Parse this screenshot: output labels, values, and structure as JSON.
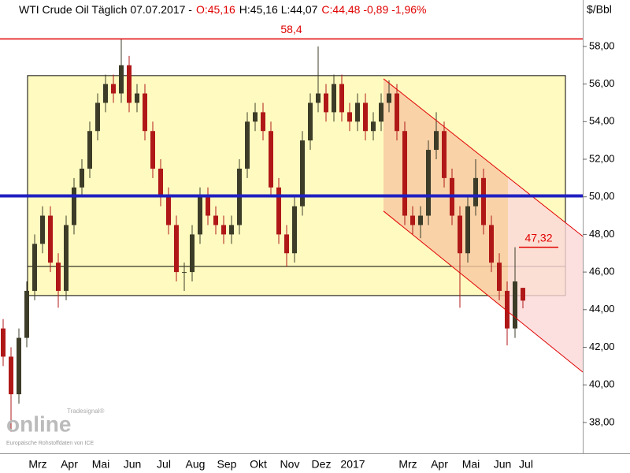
{
  "chart_data": {
    "type": "candlestick",
    "title_parts": [
      {
        "text": "WTI Crude Oil Täglich  07.07.2017 -",
        "color": "#000000"
      },
      {
        "text": "O:45,16",
        "color": "#e00000"
      },
      {
        "text": "H:45,16 L:44,07",
        "color": "#000000"
      },
      {
        "text": "C:44,48 -0,89 -1,96%",
        "color": "#e00000"
      }
    ],
    "unit_label": "$/Bbl",
    "watermark": "online",
    "watermark_small": "Tradesignal®",
    "source": "Europäische Rohstoffdaten von ICE",
    "categories": [
      null,
      null,
      null,
      null,
      "Mrz",
      null,
      null,
      null,
      "Apr",
      null,
      null,
      null,
      "Mai",
      null,
      null,
      null,
      "Jun",
      null,
      null,
      null,
      "Jul",
      null,
      null,
      null,
      "Aug",
      null,
      null,
      null,
      "Sep",
      null,
      null,
      null,
      "Okt",
      null,
      null,
      null,
      "Nov",
      null,
      null,
      null,
      "Dez",
      null,
      null,
      null,
      "2017",
      null,
      null,
      null,
      null,
      null,
      null,
      "Mrz",
      null,
      null,
      null,
      "Apr",
      null,
      null,
      null,
      "Mai",
      null,
      null,
      null,
      "Jun",
      null,
      null,
      "Jul"
    ],
    "open": [
      43.0,
      41.5,
      39.5,
      42.5,
      45.0,
      47.5,
      49.0,
      46.5,
      45.0,
      48.5,
      50.5,
      51.5,
      53.5,
      55.0,
      56.0,
      55.5,
      57.0,
      55.0,
      55.5,
      53.5,
      51.5,
      50.0,
      48.5,
      46.0,
      46.0,
      48.0,
      50.0,
      49.0,
      48.5,
      48.0,
      48.5,
      51.5,
      54.0,
      54.5,
      53.5,
      50.5,
      48.0,
      47.0,
      49.5,
      53.0,
      55.0,
      55.5,
      54.5,
      56.0,
      54.5,
      54.0,
      55.0,
      53.5,
      54.0,
      55.0,
      55.5,
      53.5,
      49.0,
      48.5,
      49.0,
      52.5,
      53.5,
      51.0,
      49.0,
      47.0,
      49.5,
      51.0,
      48.5,
      46.5,
      45.0,
      43.0,
      45.16
    ],
    "high": [
      43.5,
      42.0,
      43.0,
      45.5,
      48.0,
      49.5,
      49.5,
      47.0,
      49.0,
      51.0,
      52.0,
      54.0,
      55.5,
      56.5,
      56.5,
      58.4,
      57.5,
      56.0,
      56.0,
      54.0,
      52.0,
      50.5,
      49.0,
      46.5,
      48.5,
      50.5,
      50.5,
      49.5,
      49.0,
      49.0,
      52.0,
      54.5,
      55.0,
      55.0,
      54.0,
      51.0,
      48.5,
      50.0,
      53.5,
      55.5,
      58.0,
      56.0,
      56.5,
      56.5,
      55.0,
      55.5,
      55.5,
      54.5,
      55.5,
      56.2,
      56.0,
      54.0,
      49.5,
      49.5,
      53.0,
      54.5,
      54.0,
      51.5,
      49.5,
      50.0,
      52.0,
      51.5,
      49.0,
      47.0,
      45.5,
      47.32,
      45.16
    ],
    "low": [
      41.0,
      37.5,
      39.0,
      42.0,
      44.5,
      47.0,
      46.0,
      44.1,
      44.5,
      48.0,
      50.0,
      51.0,
      53.0,
      54.5,
      55.0,
      55.0,
      54.5,
      54.5,
      53.0,
      51.0,
      49.5,
      48.0,
      45.5,
      45.0,
      45.5,
      47.5,
      48.5,
      48.0,
      47.5,
      47.5,
      48.0,
      51.0,
      53.5,
      53.0,
      50.0,
      47.5,
      46.3,
      46.5,
      49.0,
      52.5,
      54.5,
      54.0,
      54.0,
      54.0,
      53.5,
      53.5,
      53.0,
      53.0,
      53.5,
      54.5,
      53.0,
      48.5,
      48.0,
      47.8,
      48.5,
      52.0,
      50.5,
      48.5,
      44.1,
      46.5,
      49.0,
      48.0,
      46.0,
      44.5,
      42.1,
      42.5,
      44.07
    ],
    "close": [
      41.5,
      39.5,
      42.5,
      45.0,
      47.5,
      49.0,
      46.5,
      45.0,
      48.5,
      50.5,
      51.5,
      53.5,
      55.0,
      56.0,
      55.5,
      57.0,
      55.0,
      55.5,
      53.5,
      51.5,
      50.0,
      48.5,
      46.0,
      46.0,
      48.0,
      50.0,
      49.0,
      48.5,
      48.0,
      48.5,
      51.5,
      54.0,
      54.5,
      53.5,
      50.5,
      48.0,
      47.0,
      49.5,
      53.0,
      55.0,
      55.5,
      54.5,
      56.0,
      54.5,
      54.0,
      55.0,
      53.5,
      54.0,
      55.0,
      55.5,
      53.5,
      49.0,
      48.5,
      49.0,
      52.5,
      53.5,
      51.0,
      49.0,
      47.0,
      49.5,
      51.0,
      48.5,
      46.5,
      45.0,
      43.0,
      45.5,
      44.48
    ],
    "up_color": "#3c3c28",
    "down_color": "#b01818",
    "ylim": [
      36.36,
      60.47
    ],
    "yticks": [
      {
        "value": 38,
        "label": "38,00"
      },
      {
        "value": 40,
        "label": "40,00"
      },
      {
        "value": 42,
        "label": "42,00"
      },
      {
        "value": 44,
        "label": "44,00"
      },
      {
        "value": 46,
        "label": "46,00"
      },
      {
        "value": 48,
        "label": "48,00"
      },
      {
        "value": 50,
        "label": "50,00"
      },
      {
        "value": 52,
        "label": "52,00"
      },
      {
        "value": 54,
        "label": "54,00"
      },
      {
        "value": 56,
        "label": "56,00"
      },
      {
        "value": 58,
        "label": "58,00"
      }
    ],
    "range_box": {
      "from_index": 3.1,
      "to_index": 71.4,
      "top": 56.45,
      "bottom": 44.75,
      "mid": 46.3,
      "color": "#fffbc0"
    },
    "channel": {
      "from_index": 48.3,
      "split_index": 64.1,
      "to_index": 73.6,
      "top_start": 56.28,
      "top_end": 47.9,
      "bottom_start": 49.24,
      "bottom_end": 40.68,
      "color": "#f8c8a0",
      "extension_color": "#fbd8d8"
    },
    "levels": [
      {
        "value": 58.4,
        "value_label": "58,4",
        "color": "#e00000"
      },
      {
        "value": 50.05,
        "color": "#2020c0"
      },
      {
        "value": 47.32,
        "value_label": "47,32",
        "color": "#e00000",
        "from_index": 65.5,
        "to_index": 70.5
      }
    ]
  }
}
